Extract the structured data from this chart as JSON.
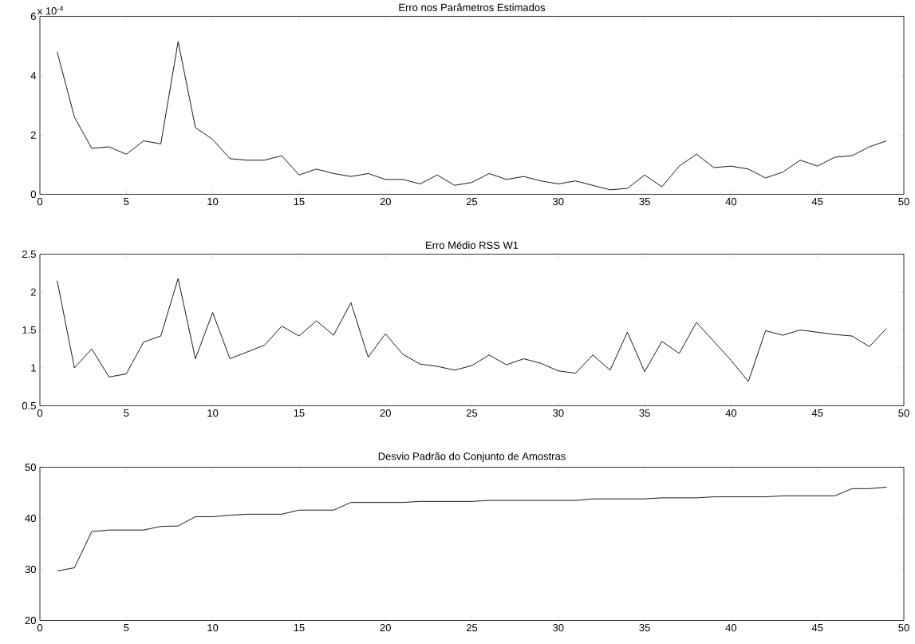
{
  "chart_data": [
    {
      "type": "line",
      "title": "Erro nos Parâmetros Estimados",
      "annotations": [
        "x 10$^{-4}$"
      ],
      "color": "#000000",
      "x": [
        1,
        2,
        3,
        4,
        5,
        6,
        7,
        8,
        9,
        10,
        11,
        12,
        13,
        14,
        15,
        16,
        17,
        18,
        19,
        20,
        21,
        22,
        23,
        24,
        25,
        26,
        27,
        28,
        29,
        30,
        31,
        32,
        33,
        34,
        35,
        36,
        37,
        38,
        39,
        40,
        41,
        42,
        43,
        44,
        45,
        46,
        47,
        48,
        49
      ],
      "values": [
        4.8,
        2.6,
        1.55,
        1.6,
        1.35,
        1.8,
        1.7,
        5.15,
        2.25,
        1.85,
        1.2,
        1.15,
        1.15,
        1.3,
        0.65,
        0.85,
        0.7,
        0.6,
        0.7,
        0.5,
        0.5,
        0.35,
        0.65,
        0.3,
        0.4,
        0.7,
        0.5,
        0.6,
        0.45,
        0.35,
        0.45,
        0.3,
        0.15,
        0.2,
        0.65,
        0.25,
        0.95,
        1.35,
        0.9,
        0.95,
        0.85,
        0.55,
        0.75,
        1.15,
        0.95,
        1.25,
        1.3,
        1.6,
        1.8
      ],
      "xlim": [
        0,
        50
      ],
      "ylim": [
        0,
        6
      ],
      "xticks": [
        0,
        5,
        10,
        15,
        20,
        25,
        30,
        35,
        40,
        45,
        50
      ],
      "yticks": [
        0,
        2,
        4,
        6
      ]
    },
    {
      "type": "line",
      "title": "Erro Médio RSS W1",
      "color": "#000000",
      "x": [
        1,
        2,
        3,
        4,
        5,
        6,
        7,
        8,
        9,
        10,
        11,
        12,
        13,
        14,
        15,
        16,
        17,
        18,
        19,
        20,
        21,
        22,
        23,
        24,
        25,
        26,
        27,
        28,
        29,
        30,
        31,
        32,
        33,
        34,
        35,
        36,
        37,
        38,
        39,
        40,
        41,
        42,
        43,
        44,
        45,
        46,
        47,
        48,
        49
      ],
      "values": [
        2.15,
        1.0,
        1.25,
        0.88,
        0.92,
        1.34,
        1.42,
        2.18,
        1.12,
        1.73,
        1.12,
        1.21,
        1.3,
        1.55,
        1.42,
        1.62,
        1.43,
        1.86,
        1.14,
        1.45,
        1.18,
        1.05,
        1.02,
        0.97,
        1.03,
        1.17,
        1.04,
        1.12,
        1.06,
        0.96,
        0.93,
        1.17,
        0.97,
        1.47,
        0.95,
        1.35,
        1.19,
        1.6,
        1.35,
        1.1,
        0.82,
        1.49,
        1.43,
        1.5,
        1.47,
        1.44,
        1.42,
        1.28,
        1.52
      ],
      "xlim": [
        0,
        50
      ],
      "ylim": [
        0.5,
        2.5
      ],
      "xticks": [
        0,
        5,
        10,
        15,
        20,
        25,
        30,
        35,
        40,
        45,
        50
      ],
      "yticks": [
        0.5,
        1,
        1.5,
        2,
        2.5
      ]
    },
    {
      "type": "line",
      "title": "Desvio Padrão do Conjunto de Amostras",
      "color": "#000000",
      "x": [
        1,
        2,
        3,
        4,
        5,
        6,
        7,
        8,
        9,
        10,
        11,
        12,
        13,
        14,
        15,
        16,
        17,
        18,
        19,
        20,
        21,
        22,
        23,
        24,
        25,
        26,
        27,
        28,
        29,
        30,
        31,
        32,
        33,
        34,
        35,
        36,
        37,
        38,
        39,
        40,
        41,
        42,
        43,
        44,
        45,
        46,
        47,
        48,
        49
      ],
      "values": [
        29.7,
        30.3,
        37.4,
        37.7,
        37.7,
        37.7,
        38.4,
        38.5,
        40.3,
        40.3,
        40.6,
        40.8,
        40.8,
        40.8,
        41.6,
        41.6,
        41.6,
        43.1,
        43.1,
        43.1,
        43.1,
        43.3,
        43.3,
        43.3,
        43.3,
        43.5,
        43.5,
        43.5,
        43.5,
        43.5,
        43.5,
        43.8,
        43.8,
        43.8,
        43.8,
        44.0,
        44.0,
        44.0,
        44.2,
        44.2,
        44.2,
        44.2,
        44.4,
        44.4,
        44.4,
        44.4,
        45.8,
        45.8,
        46.1
      ],
      "xlim": [
        0,
        50
      ],
      "ylim": [
        20,
        50
      ],
      "xticks": [
        0,
        5,
        10,
        15,
        20,
        25,
        30,
        35,
        40,
        45,
        50
      ],
      "yticks": [
        20,
        30,
        40,
        50
      ]
    }
  ]
}
